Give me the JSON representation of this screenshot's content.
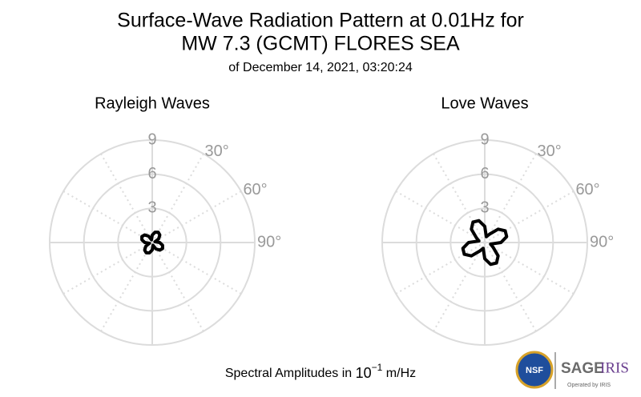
{
  "title": [
    "Surface-Wave Radiation Pattern at 0.01Hz for",
    "MW 7.3 (GCMT) FLORES SEA"
  ],
  "subtitle": "of December 14, 2021, 03:20:24",
  "note": {
    "prefix": "Spectral Amplitudes in",
    "base": "10",
    "exponent": "−1",
    "suffix": "m/Hz"
  },
  "logos": {
    "nsf": "NSF",
    "sage": "SAGE",
    "iris": "IRIS",
    "operated": "Operated by IRIS"
  },
  "chart_data": [
    {
      "type": "polar",
      "title": "Rayleigh Waves",
      "color": "#000000",
      "theta": [
        0,
        15,
        30,
        45,
        60,
        75,
        90,
        105,
        120,
        135,
        150,
        165,
        180,
        195,
        210,
        225,
        240,
        255,
        270,
        285,
        300,
        315,
        330,
        345
      ],
      "values": [
        0.65,
        0.94,
        1.05,
        0.94,
        0.65,
        0.25,
        0.65,
        0.94,
        1.05,
        0.94,
        0.65,
        0.25,
        0.65,
        0.94,
        1.05,
        0.94,
        0.65,
        0.25,
        0.65,
        0.94,
        1.05,
        0.94,
        0.65,
        0.25
      ],
      "rlim": [
        0,
        9
      ],
      "rticks": [
        3,
        6,
        9
      ],
      "thetagrid": [
        0,
        30,
        60,
        90,
        120,
        150,
        180,
        210,
        240,
        270,
        300,
        330
      ],
      "thetaticks": [
        {
          "value": 30,
          "label": "30°"
        },
        {
          "value": 60,
          "label": "60°"
        },
        {
          "value": 90,
          "label": "90°"
        }
      ]
    },
    {
      "type": "polar",
      "title": "Love Waves",
      "color": "#000000",
      "theta": [
        0,
        15,
        30,
        45,
        60,
        75,
        90,
        105,
        120,
        135,
        150,
        165,
        180,
        195,
        210,
        225,
        240,
        255,
        270,
        285,
        300,
        315,
        330,
        345
      ],
      "values": [
        1.42,
        0.53,
        0.85,
        1.66,
        2.07,
        1.99,
        1.42,
        0.53,
        0.85,
        1.66,
        2.07,
        1.99,
        1.42,
        0.53,
        0.85,
        1.66,
        2.07,
        1.99,
        1.42,
        0.53,
        0.85,
        1.66,
        2.07,
        1.99
      ],
      "rlim": [
        0,
        9
      ],
      "rticks": [
        3,
        6,
        9
      ],
      "thetagrid": [
        0,
        30,
        60,
        90,
        120,
        150,
        180,
        210,
        240,
        270,
        300,
        330
      ],
      "thetaticks": [
        {
          "value": 30,
          "label": "30°"
        },
        {
          "value": 60,
          "label": "60°"
        },
        {
          "value": 90,
          "label": "90°"
        }
      ]
    }
  ]
}
